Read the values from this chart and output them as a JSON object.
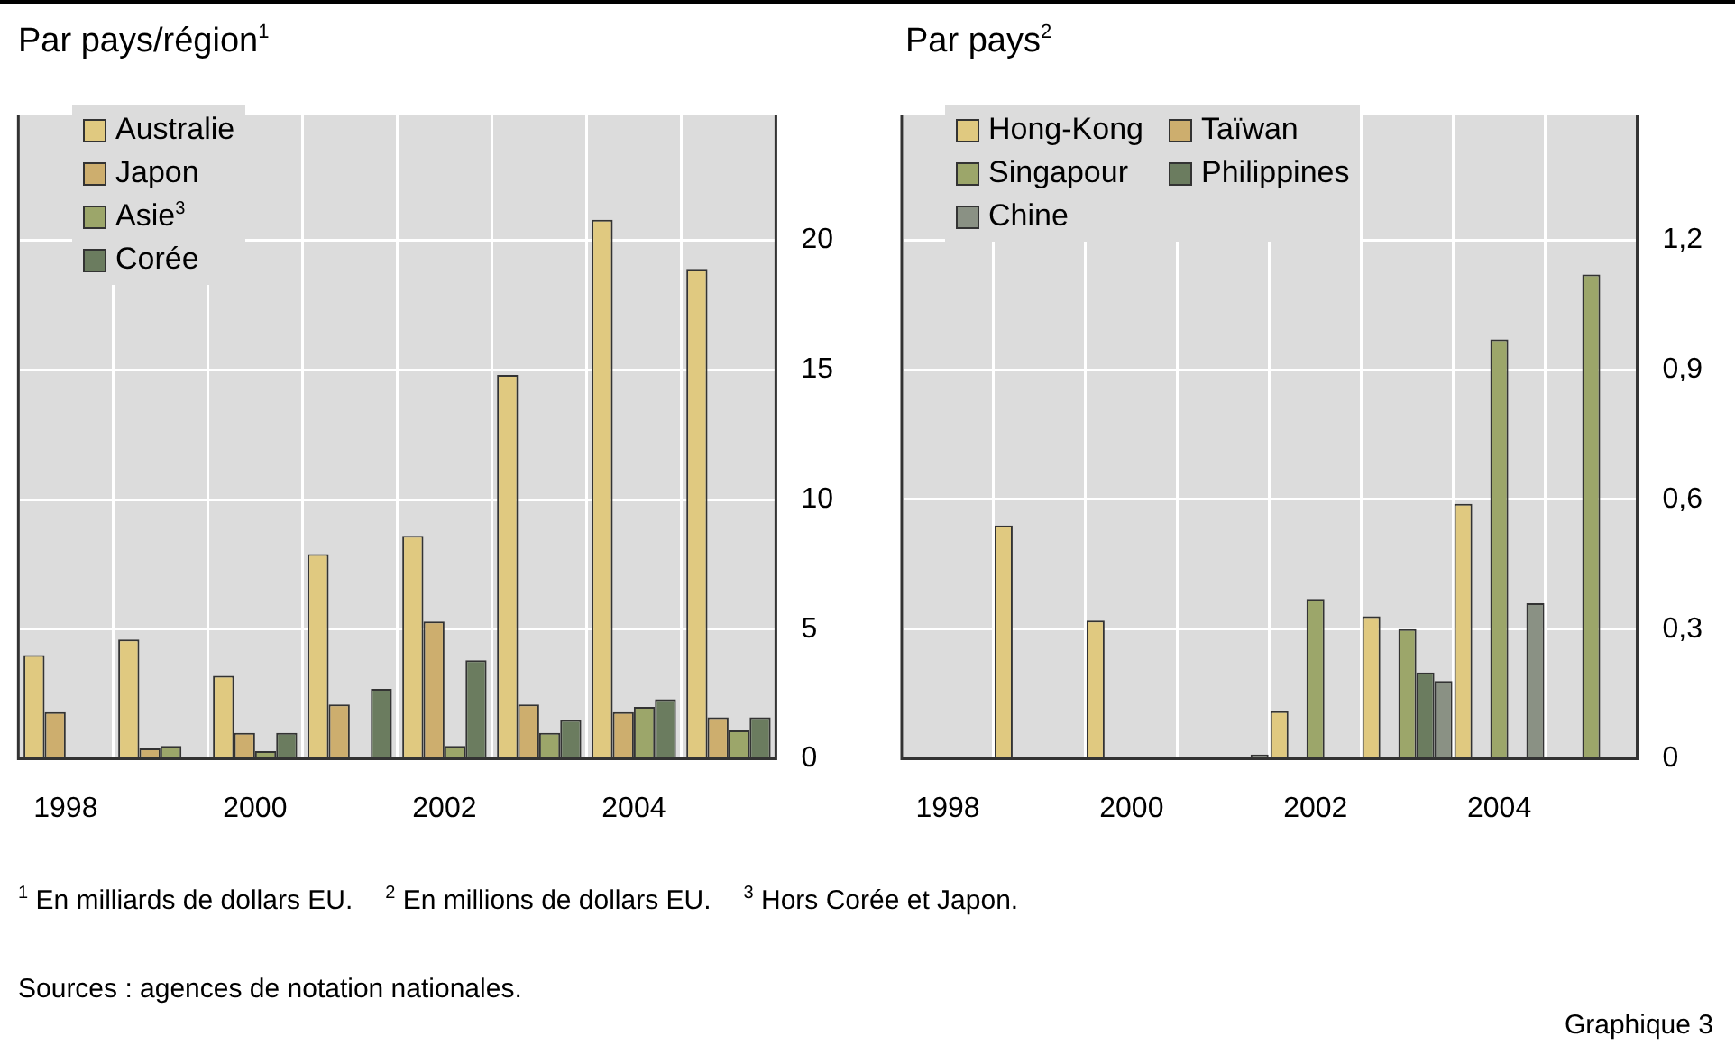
{
  "chart_data": [
    {
      "type": "bar",
      "title": "Par pays/région$^{1}$",
      "categories": [
        "1998",
        null,
        "2000",
        null,
        "2002",
        null,
        "2004",
        null
      ],
      "series": [
        {
          "name": "Australie",
          "color": "#e0c980",
          "values": [
            4.0,
            4.6,
            3.2,
            7.9,
            8.6,
            14.8,
            20.8,
            18.9
          ]
        },
        {
          "name": "Japon",
          "color": "#cdae6e",
          "values": [
            1.8,
            0.4,
            1.0,
            2.1,
            5.3,
            2.1,
            1.8,
            1.6
          ]
        },
        {
          "name": "Asie$^{3}$",
          "color": "#9ca66a",
          "values": [
            0,
            0.5,
            0.3,
            0,
            0.5,
            1.0,
            2.0,
            1.1
          ]
        },
        {
          "name": "Corée",
          "color": "#6b7c5f",
          "values": [
            0,
            0,
            1.0,
            2.7,
            3.8,
            1.5,
            2.3,
            1.6
          ]
        }
      ],
      "ylim": [
        0,
        24.85
      ],
      "yticks": [
        0,
        5,
        10,
        15,
        20
      ],
      "grid": true,
      "legend": "top left",
      "annotations": [
        "$^{1}$  En milliards de dollars EU.",
        "$^{2}$  En millions de dollars EU.",
        "$^{3}$  Hors Corée et Japon.",
        "Sources : agences de notation nationales.",
        "Graphique 3"
      ]
    },
    {
      "type": "bar",
      "title": "Par pays$^{2}$",
      "categories": [
        "1998",
        null,
        "2000",
        null,
        "2002",
        null,
        "2004",
        null
      ],
      "series": [
        {
          "name": "Hong-Kong",
          "color": "#e0c980",
          "values": [
            0,
            0.54,
            0.32,
            0,
            0.11,
            0.33,
            0.59,
            0
          ]
        },
        {
          "name": "Taïwan",
          "color": "#cdae6e",
          "values": [
            0,
            0,
            0,
            0,
            0,
            0,
            0,
            0
          ]
        },
        {
          "name": "Singapour",
          "color": "#9ca66a",
          "values": [
            0,
            0,
            0,
            0,
            0.37,
            0.3,
            0.97,
            1.12
          ]
        },
        {
          "name": "Philippines",
          "color": "#6b7c5f",
          "values": [
            0,
            0,
            0,
            0,
            0,
            0.2,
            0,
            0
          ]
        },
        {
          "name": "Chine",
          "color": "#8a9184",
          "values": [
            0,
            0,
            0,
            0.01,
            0,
            0.18,
            0.36,
            0
          ]
        }
      ],
      "ylim": [
        0,
        1.49
      ],
      "yticks": [
        0,
        {
          "value": 0.3,
          "label": "0,3"
        },
        {
          "value": 0.6,
          "label": "0,6"
        },
        {
          "value": 0.9,
          "label": "0,9"
        },
        {
          "value": 1.2,
          "label": "1,2"
        }
      ],
      "grid": true,
      "legend": "top left"
    }
  ]
}
